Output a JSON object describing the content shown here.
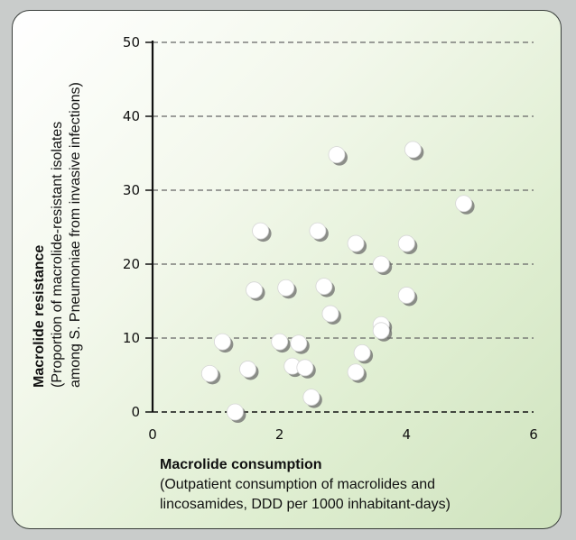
{
  "chart_data": {
    "type": "scatter",
    "title": "",
    "xlabel": "Macrolide consumption",
    "xlabel_sub_lines": [
      "(Outpatient consumption of macrolides and",
      "lincosamides, DDD per 1000 inhabitant-days)"
    ],
    "ylabel": "Macrolide resistance",
    "ylabel_sub_lines": [
      "(Proportion of macrolide-resistant isolates",
      "among S. Pneumoniae from invasive infections)"
    ],
    "xlim": [
      0,
      6
    ],
    "ylim": [
      0,
      50
    ],
    "x_ticks": [
      0,
      2,
      4,
      6
    ],
    "y_ticks": [
      0,
      10,
      20,
      30,
      40,
      50
    ],
    "x_tick_labels": [
      "0",
      "2",
      "4",
      "6"
    ],
    "y_tick_labels": [
      "0",
      "10",
      "20",
      "30",
      "40",
      "50"
    ],
    "grid": "horizontal dashed",
    "legend": "none",
    "colors": {
      "marker_fill": "#ffffff",
      "marker_shadow": "#6b6b6b",
      "grid": "#666666",
      "axis": "#111111"
    },
    "points": [
      {
        "x": 0.9,
        "y": 5.2
      },
      {
        "x": 1.1,
        "y": 9.5
      },
      {
        "x": 1.3,
        "y": 0.0
      },
      {
        "x": 1.5,
        "y": 5.8
      },
      {
        "x": 1.6,
        "y": 16.5
      },
      {
        "x": 1.7,
        "y": 24.5
      },
      {
        "x": 2.0,
        "y": 9.5
      },
      {
        "x": 2.1,
        "y": 16.8
      },
      {
        "x": 2.2,
        "y": 6.2
      },
      {
        "x": 2.3,
        "y": 9.3
      },
      {
        "x": 2.4,
        "y": 6.0
      },
      {
        "x": 2.5,
        "y": 2.0
      },
      {
        "x": 2.6,
        "y": 24.5
      },
      {
        "x": 2.7,
        "y": 17.0
      },
      {
        "x": 2.8,
        "y": 13.3
      },
      {
        "x": 2.9,
        "y": 34.8
      },
      {
        "x": 3.2,
        "y": 5.4
      },
      {
        "x": 3.2,
        "y": 22.8
      },
      {
        "x": 3.3,
        "y": 8.0
      },
      {
        "x": 3.6,
        "y": 20.0
      },
      {
        "x": 3.6,
        "y": 11.8
      },
      {
        "x": 3.6,
        "y": 11.0
      },
      {
        "x": 4.0,
        "y": 22.8
      },
      {
        "x": 4.0,
        "y": 15.8
      },
      {
        "x": 4.1,
        "y": 35.5
      },
      {
        "x": 4.9,
        "y": 28.2
      }
    ]
  }
}
